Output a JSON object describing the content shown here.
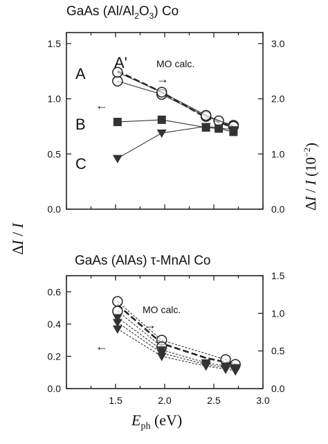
{
  "chart_data": [
    {
      "type": "line",
      "title": "GaAs (Al/Al2O3) Co",
      "title_parts": {
        "main": "GaAs (Al/Al",
        "sub1": "2",
        "mid": "O",
        "sub2": "3",
        "end": ") Co"
      },
      "xlim": [
        1.0,
        3.0
      ],
      "ylim_left": [
        0.0,
        1.6
      ],
      "ylim_right_ticks": [
        0.0,
        1.0,
        2.0,
        3.0
      ],
      "left_ticks": [
        "0.0",
        "0.5",
        "1.0",
        "1.5"
      ],
      "right_ticks": [
        "0.0",
        "1.0",
        "2.0",
        "3.0"
      ],
      "annotation": "MO calc.",
      "arrow_right": "→",
      "arrow_left": "←",
      "series": [
        {
          "name": "A",
          "marker": "open-circle",
          "x": [
            1.52,
            1.97,
            2.42,
            2.55,
            2.7
          ],
          "y": [
            1.16,
            1.04,
            0.84,
            0.8,
            0.76
          ]
        },
        {
          "name": "A'",
          "marker": "open-circle",
          "x": [
            1.52,
            1.97,
            2.42,
            2.7
          ],
          "y": [
            1.24,
            1.06,
            0.85,
            0.75
          ]
        },
        {
          "name": "B",
          "marker": "filled-square",
          "x": [
            1.52,
            1.97,
            2.42,
            2.55,
            2.7
          ],
          "y": [
            0.79,
            0.81,
            0.74,
            0.73,
            0.7
          ]
        },
        {
          "name": "C",
          "marker": "filled-triangle",
          "x": [
            1.52,
            1.97,
            2.42,
            2.7
          ],
          "y": [
            0.46,
            0.69,
            0.75,
            0.72
          ]
        }
      ],
      "mo_calc_line": {
        "x": [
          1.52,
          1.97,
          2.42,
          2.7
        ],
        "y": [
          1.25,
          1.06,
          0.83,
          0.74
        ]
      }
    },
    {
      "type": "line",
      "title": "GaAs (AlAs) τ-MnAl Co",
      "xlim": [
        1.0,
        3.0
      ],
      "ylim_left": [
        0.0,
        0.7
      ],
      "left_ticks": [
        "0.0",
        "0.2",
        "0.4",
        "0.6"
      ],
      "right_ticks": [
        "0.0",
        "0.5",
        "1.0",
        "1.5"
      ],
      "x_ticks": [
        "1.5",
        "2.0",
        "2.5",
        "3.0"
      ],
      "annotation": "MO calc.",
      "arrow_right": "→",
      "arrow_left": "←",
      "series": [
        {
          "marker": "open-circle",
          "x": [
            1.52,
            1.97,
            2.62,
            2.72
          ],
          "y": [
            0.54,
            0.3,
            0.18,
            0.15
          ]
        },
        {
          "marker": "open-circle",
          "x": [
            1.52,
            1.97
          ],
          "y": [
            0.48,
            0.26
          ]
        },
        {
          "marker": "filled-triangle",
          "x": [
            1.52,
            1.97,
            2.42,
            2.62,
            2.72
          ],
          "y": [
            0.44,
            0.24,
            0.16,
            0.14,
            0.13
          ]
        },
        {
          "marker": "filled-triangle",
          "x": [
            1.52,
            1.97,
            2.42,
            2.62,
            2.72
          ],
          "y": [
            0.41,
            0.22,
            0.15,
            0.13,
            0.12
          ]
        },
        {
          "marker": "filled-triangle",
          "x": [
            1.52,
            1.97,
            2.42,
            2.62,
            2.72
          ],
          "y": [
            0.37,
            0.2,
            0.14,
            0.12,
            0.11
          ]
        }
      ],
      "mo_calc_line": {
        "x": [
          1.52,
          1.97,
          2.42,
          2.72
        ],
        "y": [
          0.52,
          0.28,
          0.19,
          0.15
        ]
      }
    }
  ],
  "ylabel_left": {
    "delta": "Δ",
    "I1": "I",
    "slash": " / ",
    "I2": "I"
  },
  "ylabel_right": {
    "unit": "(10",
    "sup": "−2",
    "close": ")"
  },
  "xlabel": {
    "E": "E",
    "sub": "ph",
    "unit": " (eV)"
  }
}
